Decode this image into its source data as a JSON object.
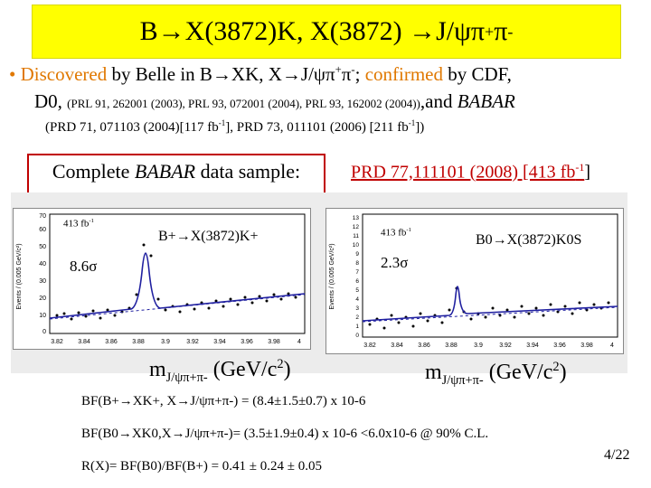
{
  "title": {
    "part1": "B→X(3872)K, X(3872) →J/ψπ",
    "plus": "+",
    "pi": "π",
    "minus": "-"
  },
  "bullet": {
    "marker": "•",
    "discovered": "Discovered",
    "text1": " by Belle in B→XK, X→J/ψπ",
    "sup_plus": "+",
    "pi": "π",
    "sup_minus": "-",
    "text2": "; ",
    "confirmed": "confirmed",
    "text3": " by CDF,",
    "d0": "D0, ",
    "refs_small": "(PRL 91, 262001 (2003), PRL 93, 072001 (2004), PRL 93, 162002 (2004))",
    "and": ",and ",
    "babar": "BABAR",
    "prd_line_a": "(PRD 71, 071103 (2004)[117 fb",
    "prd_line_b": "], PRD 73, 011101 (2006) [211 fb",
    "prd_line_c": "])",
    "exp": "-1"
  },
  "complete": {
    "prefix": "Complete ",
    "babar": "BABAR",
    "suffix": " data sample:"
  },
  "prd77": {
    "text": "PRD 77,111101 (2008) [413 fb",
    "exp": "-1",
    "close": "]"
  },
  "plot_left": {
    "lumi": "413 fb",
    "lumi_exp": "-1",
    "decay": "B+→X(3872)K+",
    "signif": "8.6σ",
    "ylabel": "Events / (0.005 GeV/c²)",
    "xticks": [
      "3.82",
      "3.84",
      "3.86",
      "3.88",
      "3.9",
      "3.92",
      "3.94",
      "3.96",
      "3.98",
      "4"
    ],
    "yticks": [
      "0",
      "10",
      "20",
      "30",
      "40",
      "50",
      "60",
      "70"
    ]
  },
  "plot_right": {
    "lumi": "413 fb",
    "lumi_exp": "-1",
    "decay": "B0→X(3872)K0S",
    "signif": "2.3σ",
    "ylabel": "Events / (0.005 GeV/c²)",
    "xticks": [
      "3.82",
      "3.84",
      "3.86",
      "3.88",
      "3.9",
      "3.92",
      "3.94",
      "3.96",
      "3.98",
      "4"
    ],
    "yticks": [
      "0",
      "1",
      "2",
      "3",
      "4",
      "5",
      "6",
      "7",
      "8",
      "9",
      "10",
      "11",
      "12",
      "13"
    ]
  },
  "mass_label_left": {
    "m": "m",
    "sub": "J/ψπ+π-",
    "unit": " (GeV/c",
    "unit_exp": "2",
    "unit_close": ")"
  },
  "mass_label_right": {
    "m": "m",
    "sub": "J/ψπ+π-",
    "unit": " (GeV/c",
    "unit_exp": "2",
    "unit_close": ")"
  },
  "formulas": {
    "f1": "BF(B+→XK+, X→J/ψπ+π-) = (8.4±1.5±0.7) x 10-6",
    "f2": "BF(B0→XK0,X→J/ψπ+π-)= (3.5±1.9±0.4) x 10-6 <6.0x10-6 @ 90% C.L.",
    "f3": "R(X)= BF(B0)/BF(B+) = 0.41 ± 0.24 ± 0.05"
  },
  "page_number": "4/22",
  "colors": {
    "title_bg": "#ffff00",
    "orange": "#e07800",
    "red": "#c00000",
    "curve": "#2020a0"
  }
}
